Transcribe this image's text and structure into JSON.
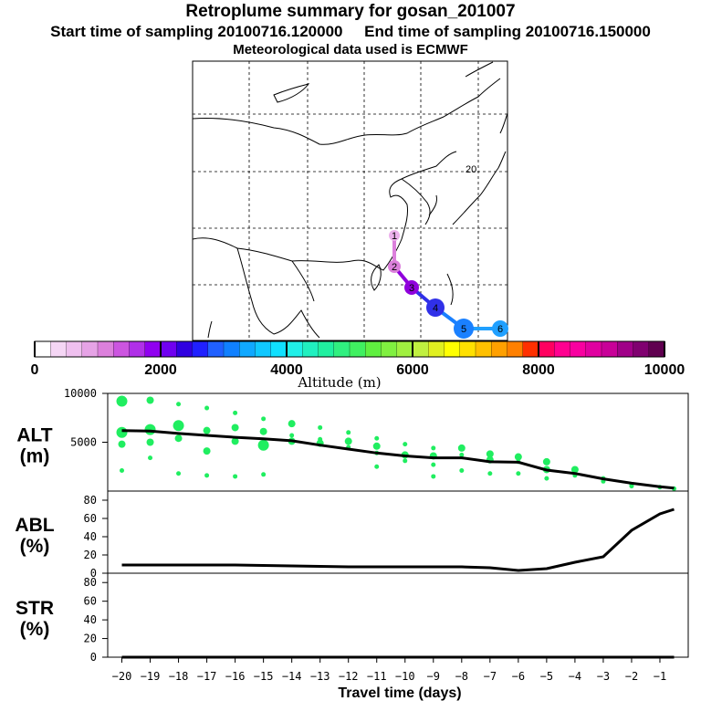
{
  "header": {
    "title": "Retroplume summary for gosan_201007",
    "start_label": "Start time of sampling 20100716.120000",
    "end_label": "End time of sampling 20100716.150000",
    "met_label": "Meteorological data used is ECMWF"
  },
  "map": {
    "grid_label": "20",
    "track": [
      {
        "day": "1",
        "color": "#ecb0ec"
      },
      {
        "day": "2",
        "color": "#dc80dc"
      },
      {
        "day": "3",
        "color": "#9000dc"
      },
      {
        "day": "4",
        "color": "#3030e8"
      },
      {
        "day": "5",
        "color": "#1a80ff"
      },
      {
        "day": "6",
        "color": "#20a0ff"
      }
    ],
    "colors": {
      "land": "#000000",
      "grid": "#000000"
    }
  },
  "colorbar": {
    "ticks": [
      0,
      2000,
      4000,
      6000,
      8000,
      10000
    ],
    "tick_labels": [
      "0",
      "2000",
      "4000",
      "6000",
      "8000",
      "10000"
    ],
    "label": "Altitude (m)",
    "range": [
      0,
      10000
    ],
    "colors": [
      "#ffffff",
      "#f5d6f5",
      "#efc0ef",
      "#e6a3e6",
      "#dc80dc",
      "#cc55e0",
      "#b030e8",
      "#9000f0",
      "#7000f0",
      "#3000e0",
      "#2020ff",
      "#2060ff",
      "#1080ff",
      "#10a8ff",
      "#10c8ff",
      "#10e0ff",
      "#20f0e8",
      "#20f0c0",
      "#20f0a0",
      "#30f080",
      "#40f060",
      "#60f040",
      "#80f040",
      "#a0f040",
      "#c0f040",
      "#e0f020",
      "#ffff00",
      "#ffe000",
      "#ffc000",
      "#ffa000",
      "#ff8000",
      "#ff3000",
      "#ff0060",
      "#ff0090",
      "#f800a0",
      "#e000a0",
      "#c80098",
      "#a00088",
      "#800070",
      "#600050"
    ]
  },
  "chart_data": [
    {
      "type": "line",
      "panel": "ALT",
      "ylabel_top": "ALT",
      "ylabel_bottom": "(m)",
      "ylim": [
        0,
        10000
      ],
      "yticks": [
        5000,
        10000
      ],
      "ytick_labels": [
        "5000",
        "10000"
      ],
      "x": [
        -20,
        -19,
        -18,
        -17,
        -16,
        -15,
        -14,
        -13,
        -12,
        -11,
        -10,
        -9,
        -8,
        -7,
        -6,
        -5,
        -4,
        -3,
        -2,
        -1,
        -0.5
      ],
      "series": [
        {
          "name": "median altitude",
          "values": [
            6200,
            6150,
            5900,
            5700,
            5500,
            5350,
            5150,
            4700,
            4300,
            3900,
            3600,
            3400,
            3400,
            3000,
            2950,
            2150,
            1800,
            1250,
            800,
            450,
            300
          ]
        }
      ],
      "scatter": [
        {
          "x": -20,
          "y": 9200,
          "s": 3
        },
        {
          "x": -20,
          "y": 6000,
          "s": 3
        },
        {
          "x": -20,
          "y": 4800,
          "s": 2
        },
        {
          "x": -20,
          "y": 2100,
          "s": 1
        },
        {
          "x": -19,
          "y": 9300,
          "s": 2
        },
        {
          "x": -19,
          "y": 6300,
          "s": 3
        },
        {
          "x": -19,
          "y": 5000,
          "s": 2
        },
        {
          "x": -19,
          "y": 3400,
          "s": 1
        },
        {
          "x": -18,
          "y": 8900,
          "s": 1
        },
        {
          "x": -18,
          "y": 6700,
          "s": 3
        },
        {
          "x": -18,
          "y": 5400,
          "s": 2
        },
        {
          "x": -18,
          "y": 1800,
          "s": 1
        },
        {
          "x": -17,
          "y": 8500,
          "s": 1
        },
        {
          "x": -17,
          "y": 6200,
          "s": 2
        },
        {
          "x": -17,
          "y": 4100,
          "s": 2
        },
        {
          "x": -17,
          "y": 1600,
          "s": 1
        },
        {
          "x": -16,
          "y": 8000,
          "s": 1
        },
        {
          "x": -16,
          "y": 6500,
          "s": 2
        },
        {
          "x": -16,
          "y": 5100,
          "s": 2
        },
        {
          "x": -16,
          "y": 1500,
          "s": 1
        },
        {
          "x": -15,
          "y": 7400,
          "s": 1
        },
        {
          "x": -15,
          "y": 6100,
          "s": 2
        },
        {
          "x": -15,
          "y": 4700,
          "s": 3
        },
        {
          "x": -15,
          "y": 1700,
          "s": 1
        },
        {
          "x": -14,
          "y": 6900,
          "s": 2
        },
        {
          "x": -14,
          "y": 5700,
          "s": 1
        },
        {
          "x": -14,
          "y": 5100,
          "s": 2
        },
        {
          "x": -13,
          "y": 6500,
          "s": 1
        },
        {
          "x": -13,
          "y": 5300,
          "s": 1
        },
        {
          "x": -13,
          "y": 4900,
          "s": 2
        },
        {
          "x": -12,
          "y": 6000,
          "s": 1
        },
        {
          "x": -12,
          "y": 5100,
          "s": 2
        },
        {
          "x": -12,
          "y": 4500,
          "s": 1
        },
        {
          "x": -11,
          "y": 5400,
          "s": 1
        },
        {
          "x": -11,
          "y": 4600,
          "s": 2
        },
        {
          "x": -11,
          "y": 3900,
          "s": 1
        },
        {
          "x": -11,
          "y": 2500,
          "s": 1
        },
        {
          "x": -10,
          "y": 4800,
          "s": 1
        },
        {
          "x": -10,
          "y": 3700,
          "s": 2
        },
        {
          "x": -10,
          "y": 3100,
          "s": 1
        },
        {
          "x": -9,
          "y": 4400,
          "s": 1
        },
        {
          "x": -9,
          "y": 3600,
          "s": 2
        },
        {
          "x": -9,
          "y": 2700,
          "s": 1
        },
        {
          "x": -9,
          "y": 1500,
          "s": 1
        },
        {
          "x": -8,
          "y": 4400,
          "s": 2
        },
        {
          "x": -8,
          "y": 3700,
          "s": 1
        },
        {
          "x": -8,
          "y": 2100,
          "s": 1
        },
        {
          "x": -7,
          "y": 3800,
          "s": 2
        },
        {
          "x": -7,
          "y": 3200,
          "s": 2
        },
        {
          "x": -7,
          "y": 1800,
          "s": 1
        },
        {
          "x": -6,
          "y": 3500,
          "s": 2
        },
        {
          "x": -6,
          "y": 3000,
          "s": 1
        },
        {
          "x": -6,
          "y": 1800,
          "s": 1
        },
        {
          "x": -5,
          "y": 3000,
          "s": 2
        },
        {
          "x": -5,
          "y": 2200,
          "s": 2
        },
        {
          "x": -5,
          "y": 1300,
          "s": 1
        },
        {
          "x": -4,
          "y": 2200,
          "s": 2
        },
        {
          "x": -4,
          "y": 1600,
          "s": 1
        },
        {
          "x": -3,
          "y": 1300,
          "s": 1
        },
        {
          "x": -3,
          "y": 1000,
          "s": 1
        },
        {
          "x": -2,
          "y": 700,
          "s": 1
        },
        {
          "x": -2,
          "y": 500,
          "s": 1
        },
        {
          "x": -1,
          "y": 400,
          "s": 1
        },
        {
          "x": -0.5,
          "y": 250,
          "s": 1
        }
      ],
      "colors": {
        "scatter": "#20ee60",
        "line": "#000000"
      }
    },
    {
      "type": "line",
      "panel": "ABL",
      "ylabel_top": "ABL",
      "ylabel_bottom": "(%)",
      "ylim": [
        0,
        90
      ],
      "yticks": [
        0,
        20,
        40,
        60,
        80
      ],
      "ytick_labels": [
        "0",
        "20",
        "40",
        "60",
        "80"
      ],
      "x": [
        -20,
        -18,
        -16,
        -14,
        -12,
        -10,
        -8,
        -7,
        -6,
        -5,
        -4,
        -3,
        -2,
        -1,
        -0.5
      ],
      "series": [
        {
          "name": "ABL fraction",
          "values": [
            9,
            9,
            9,
            8,
            7,
            7,
            7,
            6,
            3,
            5,
            12,
            18,
            47,
            65,
            70
          ]
        }
      ],
      "colors": {
        "line": "#000000"
      }
    },
    {
      "type": "line",
      "panel": "STR",
      "ylabel_top": "STR",
      "ylabel_bottom": "(%)",
      "ylim": [
        0,
        90
      ],
      "yticks": [
        0,
        20,
        40,
        60,
        80
      ],
      "ytick_labels": [
        "0",
        "20",
        "40",
        "60",
        "80"
      ],
      "x": [
        -20,
        -0.5
      ],
      "series": [
        {
          "name": "stratospheric fraction",
          "values": [
            0,
            0
          ]
        }
      ],
      "xticks": [
        -20,
        -19,
        -18,
        -17,
        -16,
        -15,
        -14,
        -13,
        -12,
        -11,
        -10,
        -9,
        -8,
        -7,
        -6,
        -5,
        -4,
        -3,
        -2,
        -1
      ],
      "xtick_labels": [
        "−20",
        "−19",
        "−18",
        "−17",
        "−16",
        "−15",
        "−14",
        "−13",
        "−12",
        "−11",
        "−10",
        "−9",
        "−8",
        "−7",
        "−6",
        "−5",
        "−4",
        "−3",
        "−2",
        "−1"
      ],
      "xlabel": "Travel time (days)",
      "colors": {
        "line": "#000000"
      }
    }
  ]
}
